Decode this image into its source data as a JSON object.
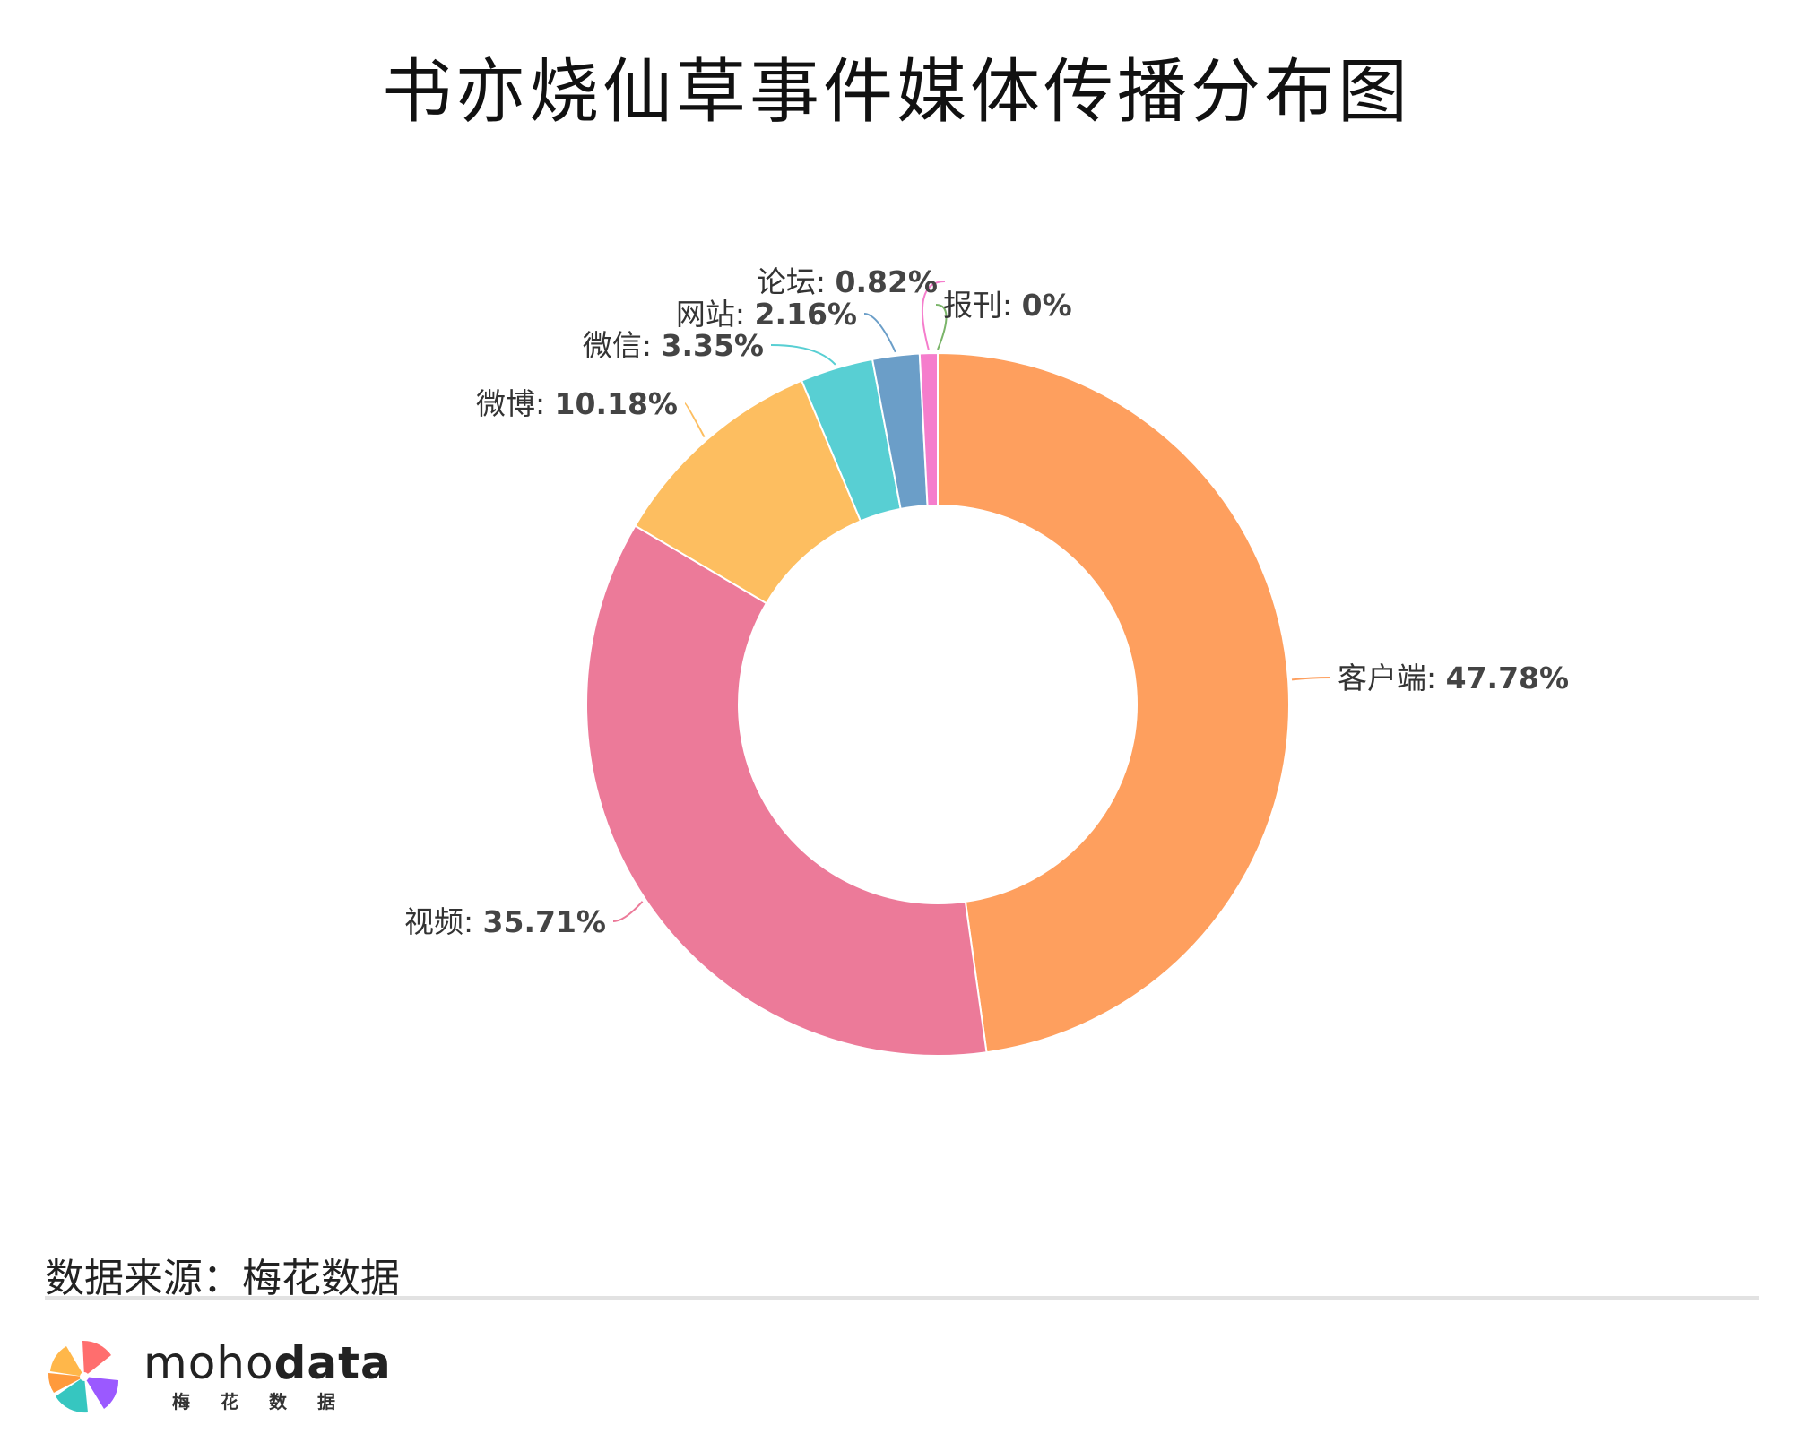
{
  "title": "书亦烧仙草事件媒体传播分布图",
  "source": "数据来源：梅花数据",
  "brand": {
    "prefix": "moho",
    "suffix": "data",
    "chinese": "梅花数据"
  },
  "colors": {
    "客户端": "#fe9f5e",
    "视频": "#ec7a99",
    "微博": "#fdbe60",
    "微信": "#58cfd3",
    "网站": "#6b9ec8",
    "论坛": "#f57dcc",
    "报刊": "#7bb56a"
  },
  "chart_data": {
    "type": "pie",
    "donut": true,
    "title": "书亦烧仙草事件媒体传播分布图",
    "series": [
      {
        "name": "客户端",
        "value": 47.78,
        "label": "客户端: ",
        "pct": "47.78%"
      },
      {
        "name": "视频",
        "value": 35.71,
        "label": "视频: ",
        "pct": "35.71%"
      },
      {
        "name": "微博",
        "value": 10.18,
        "label": "微博: ",
        "pct": "10.18%"
      },
      {
        "name": "微信",
        "value": 3.35,
        "label": "微信: ",
        "pct": "3.35%"
      },
      {
        "name": "网站",
        "value": 2.16,
        "label": "网站: ",
        "pct": "2.16%"
      },
      {
        "name": "论坛",
        "value": 0.82,
        "label": "论坛: ",
        "pct": "0.82%"
      },
      {
        "name": "报刊",
        "value": 0,
        "label": "报刊: ",
        "pct": "0%"
      }
    ]
  }
}
